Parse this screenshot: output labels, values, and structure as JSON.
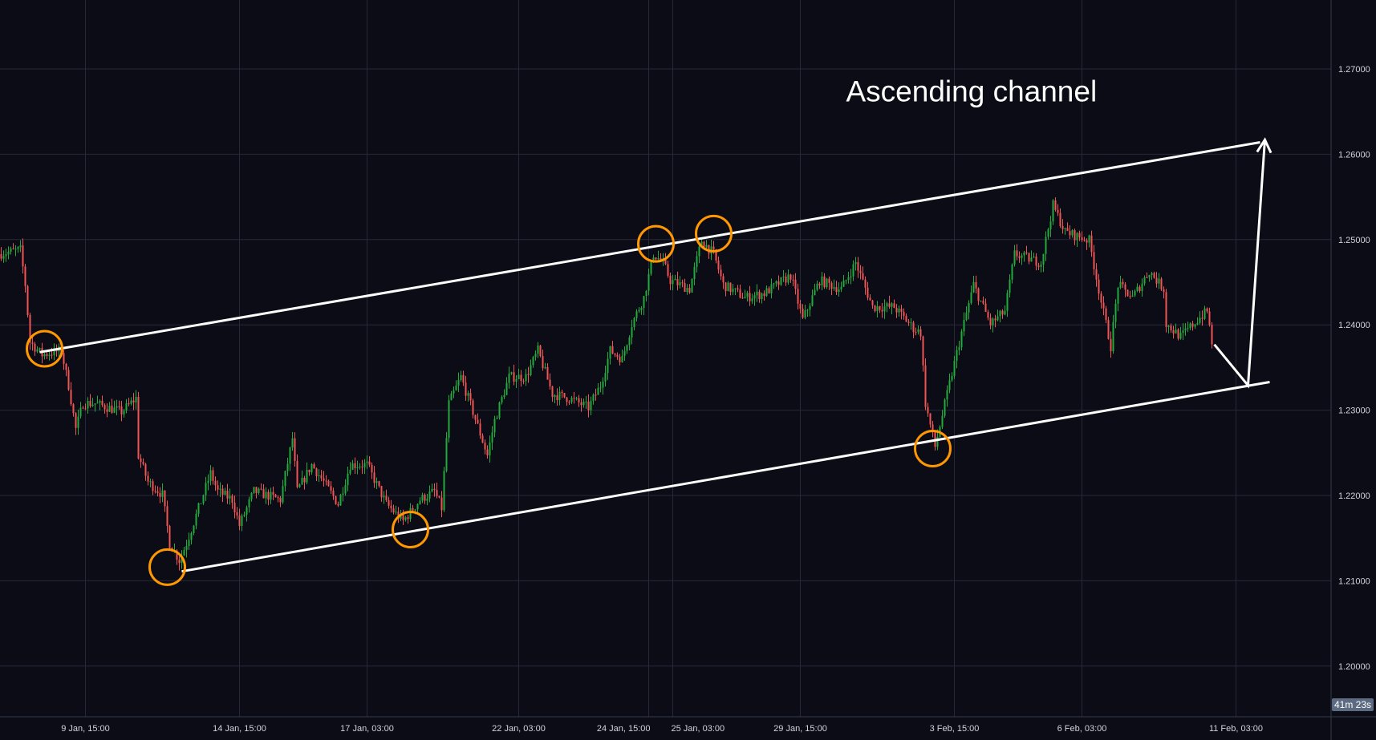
{
  "chart_data": {
    "type": "candlestick",
    "title": "",
    "annotation": "Ascending channel",
    "y_ticks": [
      1.27,
      1.26,
      1.25,
      1.24,
      1.23,
      1.22,
      1.21,
      1.2
    ],
    "y_tick_labels": [
      "1.27000",
      "1.26000",
      "1.25000",
      "1.24000",
      "1.23000",
      "1.22000",
      "1.21000",
      "1.20000"
    ],
    "ylim": [
      1.1945,
      1.278
    ],
    "x_ticks": [
      {
        "label": "9 Jan, 15:00",
        "bar": 35
      },
      {
        "label": "14 Jan, 15:00",
        "bar": 99
      },
      {
        "label": "17 Jan, 03:00",
        "bar": 152
      },
      {
        "label": "22 Jan, 03:00",
        "bar": 215
      },
      {
        "label": "24 Jan, 15:00",
        "bar": 269
      },
      {
        "label": "25 Jan, 03:00",
        "bar": 279
      },
      {
        "label": "29 Jan, 15:00",
        "bar": 332
      },
      {
        "label": "3 Feb, 15:00",
        "bar": 396
      },
      {
        "label": "6 Feb, 03:00",
        "bar": 449
      },
      {
        "label": "11 Feb, 03:00",
        "bar": 513
      }
    ],
    "grid": true,
    "bar_count": 553,
    "price_path": [
      [
        0,
        1.2483
      ],
      [
        9,
        1.2488
      ],
      [
        11,
        1.2447
      ],
      [
        13,
        1.238
      ],
      [
        18,
        1.2365
      ],
      [
        26,
        1.237
      ],
      [
        29,
        1.2329
      ],
      [
        32,
        1.2278
      ],
      [
        35,
        1.2308
      ],
      [
        40,
        1.2308
      ],
      [
        51,
        1.2298
      ],
      [
        57,
        1.2314
      ],
      [
        58,
        1.2247
      ],
      [
        62,
        1.2216
      ],
      [
        68,
        1.2201
      ],
      [
        71,
        1.2144
      ],
      [
        75,
        1.2124
      ],
      [
        78,
        1.2144
      ],
      [
        88,
        1.2226
      ],
      [
        91,
        1.2205
      ],
      [
        97,
        1.2195
      ],
      [
        100,
        1.2165
      ],
      [
        106,
        1.2205
      ],
      [
        117,
        1.2195
      ],
      [
        122,
        1.2267
      ],
      [
        124,
        1.2205
      ],
      [
        130,
        1.2236
      ],
      [
        135,
        1.2216
      ],
      [
        141,
        1.219
      ],
      [
        146,
        1.2236
      ],
      [
        153,
        1.2236
      ],
      [
        161,
        1.219
      ],
      [
        168,
        1.217
      ],
      [
        175,
        1.2195
      ],
      [
        181,
        1.2205
      ],
      [
        184,
        1.2185
      ],
      [
        187,
        1.2308
      ],
      [
        192,
        1.2339
      ],
      [
        197,
        1.2298
      ],
      [
        203,
        1.2247
      ],
      [
        206,
        1.2288
      ],
      [
        212,
        1.2339
      ],
      [
        219,
        1.2339
      ],
      [
        224,
        1.237
      ],
      [
        230,
        1.2319
      ],
      [
        237,
        1.2314
      ],
      [
        245,
        1.2303
      ],
      [
        250,
        1.2329
      ],
      [
        254,
        1.237
      ],
      [
        259,
        1.236
      ],
      [
        263,
        1.2401
      ],
      [
        268,
        1.2432
      ],
      [
        272,
        1.2483
      ],
      [
        276,
        1.2473
      ],
      [
        279,
        1.2452
      ],
      [
        287,
        1.2442
      ],
      [
        292,
        1.2499
      ],
      [
        297,
        1.2483
      ],
      [
        301,
        1.2447
      ],
      [
        310,
        1.2432
      ],
      [
        318,
        1.2437
      ],
      [
        329,
        1.2458
      ],
      [
        334,
        1.2406
      ],
      [
        341,
        1.2452
      ],
      [
        350,
        1.2442
      ],
      [
        356,
        1.2473
      ],
      [
        363,
        1.2421
      ],
      [
        372,
        1.2421
      ],
      [
        380,
        1.2396
      ],
      [
        383,
        1.2391
      ],
      [
        385,
        1.2308
      ],
      [
        389,
        1.2257
      ],
      [
        394,
        1.2319
      ],
      [
        400,
        1.2391
      ],
      [
        405,
        1.2447
      ],
      [
        412,
        1.2401
      ],
      [
        418,
        1.2416
      ],
      [
        422,
        1.2483
      ],
      [
        433,
        1.2473
      ],
      [
        438,
        1.254
      ],
      [
        443,
        1.2509
      ],
      [
        453,
        1.2499
      ],
      [
        458,
        1.2427
      ],
      [
        462,
        1.2375
      ],
      [
        465,
        1.2447
      ],
      [
        471,
        1.2432
      ],
      [
        478,
        1.2463
      ],
      [
        484,
        1.2442
      ],
      [
        485,
        1.2401
      ],
      [
        491,
        1.2386
      ],
      [
        498,
        1.2406
      ],
      [
        502,
        1.2416
      ],
      [
        504,
        1.238
      ]
    ],
    "drawings": {
      "upper_channel": [
        [
          16,
          1.2368
        ],
        [
          523,
          1.2614
        ]
      ],
      "lower_channel": [
        [
          75,
          1.2111
        ],
        [
          527,
          1.2333
        ]
      ],
      "projection_arrow": [
        [
          504,
          1.2377
        ],
        [
          518,
          1.2329
        ],
        [
          525,
          1.2617
        ]
      ],
      "touch_circles": [
        [
          18,
          1.2372
        ],
        [
          69,
          1.2116
        ],
        [
          170,
          1.216
        ],
        [
          272,
          1.2495
        ],
        [
          296,
          1.2507
        ],
        [
          387,
          1.2255
        ]
      ],
      "annotation_anchor": [
        351,
        1.2662
      ]
    },
    "colors": {
      "background": "#0b0c16",
      "grid": "#262838",
      "up": "#22ab3c",
      "down": "#f05454",
      "lines": "#ffffff",
      "circles": "#ff9800"
    }
  },
  "status": {
    "countdown": "41m 23s"
  }
}
